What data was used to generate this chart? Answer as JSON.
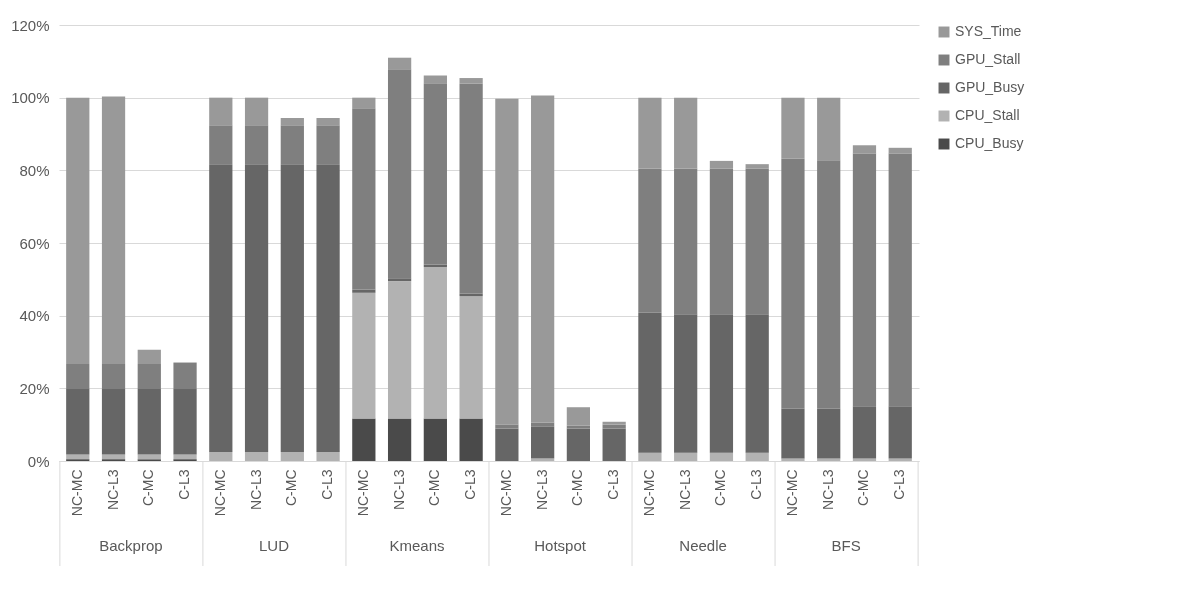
{
  "chart_data": {
    "type": "bar",
    "stacked": true,
    "categories": [
      "NC-MC",
      "NC-L3",
      "C-MC",
      "C-L3",
      "NC-MC",
      "NC-L3",
      "C-MC",
      "C-L3",
      "NC-MC",
      "NC-L3",
      "C-MC",
      "C-L3",
      "NC-MC",
      "NC-L3",
      "C-MC",
      "C-L3",
      "NC-MC",
      "NC-L3",
      "C-MC",
      "C-L3",
      "NC-MC",
      "NC-L3",
      "C-MC",
      "C-L3"
    ],
    "annotations": [
      "Backprop",
      "LUD",
      "Kmeans",
      "Hotspot",
      "Needle",
      "BFS"
    ],
    "series": [
      {
        "name": "CPU_Busy",
        "color": "#4a4a4a",
        "values": [
          0.5,
          0.5,
          0.5,
          0.5,
          0,
          0,
          0,
          0,
          11.7,
          11.7,
          11.7,
          11.7,
          0,
          0,
          0,
          0,
          0,
          0,
          0,
          0,
          0,
          0,
          0,
          0
        ]
      },
      {
        "name": "CPU_Stall",
        "color": "#b2b2b2",
        "values": [
          1.3,
          1.3,
          1.3,
          1.3,
          2.5,
          2.5,
          2.5,
          2.5,
          34.6,
          37.8,
          41.7,
          33.7,
          null,
          0.7,
          null,
          null,
          2.3,
          2.3,
          2.3,
          2.3,
          0.7,
          0.7,
          0.7,
          0.7
        ]
      },
      {
        "name": "GPU_Busy",
        "color": "#666666",
        "values": [
          18,
          18,
          18,
          18,
          79.2,
          79.2,
          79.2,
          79.2,
          0.9,
          0.8,
          0.6,
          0.7,
          8.9,
          8.7,
          8.9,
          8.9,
          38.5,
          38.1,
          38.1,
          38.1,
          13.7,
          13.7,
          14.4,
          14.4
        ]
      },
      {
        "name": "GPU_Stall",
        "color": "#7f7f7f",
        "values": [
          6.9,
          6.9,
          6.9,
          7.3,
          10.7,
          10.7,
          10.7,
          10.7,
          49.9,
          57.5,
          50,
          57.8,
          1.1,
          1.2,
          0.8,
          1.1,
          39.7,
          40.1,
          40.1,
          40.1,
          68.8,
          68.4,
          69.5,
          69.5
        ]
      },
      {
        "name": "SYS_Time",
        "color": "#999999",
        "values": [
          73.3,
          73.6,
          3.9,
          0,
          7.6,
          7.6,
          2,
          2,
          2.9,
          3.2,
          2.1,
          1.5,
          89.7,
          90,
          5.1,
          0.8,
          19.5,
          19.5,
          2.1,
          1.2,
          16.8,
          17.2,
          2.3,
          1.6
        ]
      }
    ],
    "ylim": [
      0,
      120
    ],
    "yticks": [
      {
        "value": 0,
        "label": "0%"
      },
      {
        "value": 20,
        "label": "20%"
      },
      {
        "value": 40,
        "label": "40%"
      },
      {
        "value": 60,
        "label": "60%"
      },
      {
        "value": 80,
        "label": "80%"
      },
      {
        "value": 100,
        "label": "100%"
      },
      {
        "value": 120,
        "label": "120%"
      }
    ],
    "grid": "y",
    "legend": "right"
  }
}
